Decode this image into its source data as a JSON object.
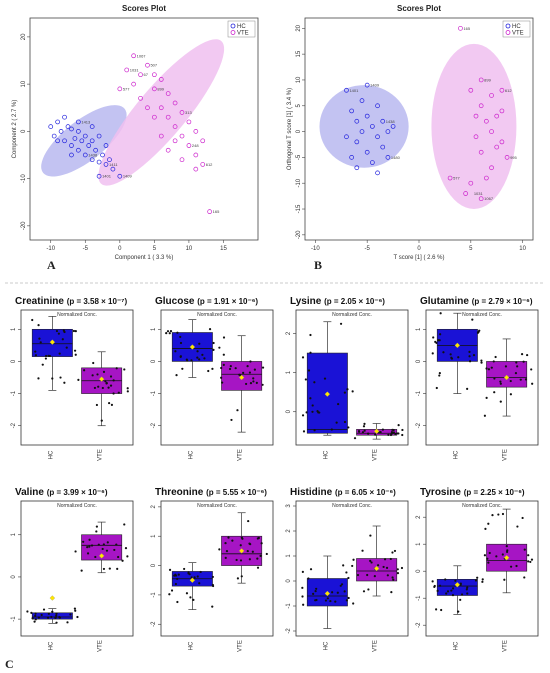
{
  "figure": {
    "panel_letters": [
      "A",
      "B",
      "C"
    ]
  },
  "chart_data": [
    {
      "type": "scatter",
      "panel": "A",
      "title": "Scores Plot",
      "xlabel": "Component 1 ( 3.3 %)",
      "ylabel": "Component 2 ( 2.7 %)",
      "xlim": [
        -13,
        20
      ],
      "ylim": [
        -23,
        24
      ],
      "xticks": [
        -10,
        -5,
        0,
        5,
        10,
        15
      ],
      "yticks": [
        -20,
        -10,
        0,
        10,
        20
      ],
      "legend": {
        "position": "top-right",
        "entries": [
          "HC",
          "VTE"
        ]
      },
      "colors": {
        "HC": "#2222dd",
        "VTE": "#cc22cc",
        "HC_fill": "#b8b8f0",
        "VTE_fill": "#f0c0f0"
      },
      "ellipses": [
        {
          "series": "HC",
          "cx": -5.2,
          "cy": -2.0,
          "rx": 7.5,
          "ry": 4.3,
          "angle": -38
        },
        {
          "series": "VTE",
          "cx": 6.0,
          "cy": 4.0,
          "rx": 13.5,
          "ry": 5.2,
          "angle": -50
        }
      ],
      "series": [
        {
          "name": "HC",
          "points": [
            [
              -10,
              1
            ],
            [
              -9.5,
              -1
            ],
            [
              -9,
              2
            ],
            [
              -8.5,
              0
            ],
            [
              -8,
              -2
            ],
            [
              -7.5,
              1
            ],
            [
              -7,
              -3
            ],
            [
              -7,
              0.5
            ],
            [
              -6.5,
              -1.5
            ],
            [
              -6,
              -4
            ],
            [
              -6,
              0
            ],
            [
              -5.5,
              -2
            ],
            [
              -5,
              -5
            ],
            [
              -5,
              -1
            ],
            [
              -4.5,
              -3
            ],
            [
              -4,
              -6
            ],
            [
              -4,
              -2
            ],
            [
              -3.5,
              -4
            ],
            [
              -3,
              -6.5
            ],
            [
              -3,
              -1
            ],
            [
              -2.5,
              -5
            ],
            [
              -2,
              -7
            ],
            [
              -2,
              -3
            ],
            [
              -1.5,
              -6
            ],
            [
              -1,
              -8
            ],
            [
              -8,
              3
            ],
            [
              -9,
              -2
            ],
            [
              -6,
              2
            ],
            [
              -4,
              1
            ],
            [
              -7,
              -5
            ],
            [
              -3,
              -9.5
            ],
            [
              0,
              -9.5
            ]
          ],
          "labels": [
            {
              "x": -6,
              "y": 2,
              "text": "1413"
            },
            {
              "x": -5,
              "y": -5,
              "text": "1438"
            },
            {
              "x": -3,
              "y": -9.5,
              "text": "1401"
            },
            {
              "x": 0,
              "y": -9.5,
              "text": "1409"
            },
            {
              "x": -2,
              "y": -7,
              "text": "1411"
            }
          ]
        },
        {
          "name": "VTE",
          "points": [
            [
              0,
              9
            ],
            [
              1,
              13
            ],
            [
              2,
              16
            ],
            [
              3,
              12
            ],
            [
              4,
              14
            ],
            [
              5,
              9
            ],
            [
              6,
              11
            ],
            [
              6,
              5
            ],
            [
              7,
              8
            ],
            [
              7,
              3
            ],
            [
              8,
              6
            ],
            [
              8,
              1
            ],
            [
              9,
              4
            ],
            [
              9,
              -1
            ],
            [
              10,
              2
            ],
            [
              10,
              -3
            ],
            [
              11,
              0
            ],
            [
              11,
              -5
            ],
            [
              12,
              -2
            ],
            [
              12,
              -7
            ],
            [
              5,
              3
            ],
            [
              6,
              -1
            ],
            [
              7,
              -4
            ],
            [
              8,
              -2
            ],
            [
              9,
              -6
            ],
            [
              4,
              5
            ],
            [
              3,
              7
            ],
            [
              2,
              10
            ],
            [
              5,
              12
            ],
            [
              11,
              -8
            ],
            [
              13,
              -17
            ]
          ],
          "labels": [
            {
              "x": 2,
              "y": 16,
              "text": "1067"
            },
            {
              "x": 1,
              "y": 13,
              "text": "1031"
            },
            {
              "x": 0,
              "y": 9,
              "text": "577"
            },
            {
              "x": 4,
              "y": 14,
              "text": "507"
            },
            {
              "x": 3,
              "y": 12,
              "text": "67"
            },
            {
              "x": 5,
              "y": 9,
              "text": "899"
            },
            {
              "x": 9,
              "y": 4,
              "text": "313"
            },
            {
              "x": 10,
              "y": -3,
              "text": "248"
            },
            {
              "x": 12,
              "y": -7,
              "text": "612"
            },
            {
              "x": 13,
              "y": -17,
              "text": "165"
            }
          ]
        }
      ]
    },
    {
      "type": "scatter",
      "panel": "B",
      "title": "Scores Plot",
      "xlabel": "T score [1] ( 2.6 %)",
      "ylabel": "Orthogonal T score [1] ( 3.4 %)",
      "xlim": [
        -11,
        11
      ],
      "ylim": [
        -21,
        22
      ],
      "xticks": [
        -10,
        -5,
        0,
        5,
        10
      ],
      "yticks": [
        -20,
        -15,
        -10,
        -5,
        0,
        5,
        10,
        15,
        20
      ],
      "legend": {
        "position": "top-right",
        "entries": [
          "HC",
          "VTE"
        ]
      },
      "colors": {
        "HC": "#2222dd",
        "VTE": "#cc22cc",
        "HC_fill": "#b8b8f0",
        "VTE_fill": "#f0c0f0"
      },
      "ellipses": [
        {
          "series": "HC",
          "cx": -5.3,
          "cy": 1.0,
          "rx": 4.3,
          "ry": 8.0,
          "angle": 0
        },
        {
          "series": "VTE",
          "cx": 5.3,
          "cy": 1.0,
          "rx": 4.1,
          "ry": 16.0,
          "angle": 0
        }
      ],
      "series": [
        {
          "name": "HC",
          "points": [
            [
              -7,
              8
            ],
            [
              -6.5,
              4
            ],
            [
              -6,
              2
            ],
            [
              -6,
              -2
            ],
            [
              -5.5,
              6
            ],
            [
              -5.5,
              0
            ],
            [
              -5,
              3
            ],
            [
              -5,
              -4
            ],
            [
              -4.5,
              1
            ],
            [
              -4.5,
              -6
            ],
            [
              -4,
              5
            ],
            [
              -4,
              -1
            ],
            [
              -3.5,
              2
            ],
            [
              -3.5,
              -3
            ],
            [
              -3,
              0
            ],
            [
              -3,
              -5
            ],
            [
              -6.5,
              -5
            ],
            [
              -7,
              -1
            ],
            [
              -5,
              9
            ],
            [
              -6,
              -7
            ],
            [
              -4,
              -8
            ],
            [
              -2.5,
              1
            ]
          ],
          "labels": [
            {
              "x": -7,
              "y": 8,
              "text": "1401"
            },
            {
              "x": -5,
              "y": 9,
              "text": "1409"
            },
            {
              "x": -3.5,
              "y": 2,
              "text": "1438"
            },
            {
              "x": -3,
              "y": -5,
              "text": "1480"
            }
          ]
        },
        {
          "name": "VTE",
          "points": [
            [
              4,
              20
            ],
            [
              5,
              8
            ],
            [
              6,
              10
            ],
            [
              6,
              5
            ],
            [
              6.5,
              2
            ],
            [
              7,
              7
            ],
            [
              7,
              0
            ],
            [
              7.5,
              3
            ],
            [
              8,
              -2
            ],
            [
              8,
              4
            ],
            [
              8.5,
              -5
            ],
            [
              6,
              -4
            ],
            [
              5.5,
              -1
            ],
            [
              7,
              -7
            ],
            [
              6.5,
              -9
            ],
            [
              5,
              -10
            ],
            [
              4.5,
              -12
            ],
            [
              6,
              -13
            ],
            [
              8,
              8
            ],
            [
              7.5,
              -3
            ],
            [
              5.5,
              3
            ],
            [
              3,
              -9
            ]
          ],
          "labels": [
            {
              "x": 4,
              "y": 20,
              "text": "165"
            },
            {
              "x": 8,
              "y": 8,
              "text": "612"
            },
            {
              "x": 6,
              "y": 10,
              "text": "899"
            },
            {
              "x": 8.5,
              "y": -5,
              "text": "995"
            },
            {
              "x": 3,
              "y": -9,
              "text": "577"
            },
            {
              "x": 5,
              "y": -12,
              "text": "1031"
            },
            {
              "x": 6,
              "y": -13,
              "text": "1067"
            }
          ]
        }
      ]
    },
    {
      "type": "box",
      "panel": "C",
      "subtitle": "Normalized Conc.",
      "categories": [
        "HC",
        "VTE"
      ],
      "colors": {
        "HC": "#1a12d6",
        "VTE": "#a615c4",
        "mean": "#ffe600"
      },
      "plots": [
        {
          "name": "Creatinine",
          "p": "p = 3.58 × 10⁻⁷",
          "ylim": [
            -2.6,
            1.6
          ],
          "yticks": [
            1,
            0,
            -1,
            -2
          ],
          "boxes": [
            {
              "q1": 0.15,
              "median": 0.55,
              "q3": 1.0,
              "lo": -0.9,
              "hi": 1.4,
              "mean": 0.6
            },
            {
              "q1": -1.0,
              "median": -0.6,
              "q3": -0.2,
              "lo": -2.0,
              "hi": 0.3,
              "mean": -0.55
            }
          ]
        },
        {
          "name": "Glucose",
          "p": "p = 1.91 × 10⁻⁶",
          "ylim": [
            -2.6,
            1.6
          ],
          "yticks": [
            1,
            0,
            -1,
            -2
          ],
          "boxes": [
            {
              "q1": 0.0,
              "median": 0.4,
              "q3": 0.9,
              "lo": -0.5,
              "hi": 1.3,
              "mean": 0.45
            },
            {
              "q1": -0.9,
              "median": -0.4,
              "q3": 0.0,
              "lo": -2.2,
              "hi": 0.8,
              "mean": -0.5
            }
          ]
        },
        {
          "name": "Lysine",
          "p": "p = 2.05 × 10⁻⁶",
          "ylim": [
            -0.85,
            2.6
          ],
          "yticks": [
            2,
            1,
            0
          ],
          "boxes": [
            {
              "q1": -0.55,
              "median": -0.45,
              "q3": 1.5,
              "lo": -0.6,
              "hi": 2.3,
              "mean": 0.45
            },
            {
              "q1": -0.6,
              "median": -0.55,
              "q3": -0.45,
              "lo": -0.7,
              "hi": -0.3,
              "mean": -0.5
            }
          ]
        },
        {
          "name": "Glutamine",
          "p": "p = 2.79 × 10⁻⁶",
          "ylim": [
            -2.6,
            1.6
          ],
          "yticks": [
            1,
            0,
            -1,
            -2
          ],
          "boxes": [
            {
              "q1": 0.0,
              "median": 0.5,
              "q3": 1.0,
              "lo": -1.0,
              "hi": 1.5,
              "mean": 0.5
            },
            {
              "q1": -0.8,
              "median": -0.5,
              "q3": 0.0,
              "lo": -1.7,
              "hi": 0.7,
              "mean": -0.5
            }
          ]
        },
        {
          "name": "Valine",
          "p": "p = 3.99 × 10⁻⁶",
          "ylim": [
            -1.4,
            1.8
          ],
          "yticks": [
            1,
            0,
            -1
          ],
          "boxes": [
            {
              "q1": -1.0,
              "median": -0.95,
              "q3": -0.85,
              "lo": -1.1,
              "hi": -0.75,
              "mean": -0.5
            },
            {
              "q1": 0.4,
              "median": 0.75,
              "q3": 1.0,
              "lo": 0.1,
              "hi": 1.3,
              "mean": 0.5
            }
          ]
        },
        {
          "name": "Threonine",
          "p": "p = 5.55 × 10⁻⁶",
          "ylim": [
            -2.4,
            2.2
          ],
          "yticks": [
            2,
            1,
            0,
            -1,
            -2
          ],
          "boxes": [
            {
              "q1": -0.7,
              "median": -0.45,
              "q3": -0.2,
              "lo": -1.5,
              "hi": 0.1,
              "mean": -0.5
            },
            {
              "q1": 0.0,
              "median": 0.4,
              "q3": 1.0,
              "lo": -0.6,
              "hi": 1.8,
              "mean": 0.5
            }
          ]
        },
        {
          "name": "Histidine",
          "p": "p = 6.05 × 10⁻⁶",
          "ylim": [
            -2.2,
            3.2
          ],
          "yticks": [
            3,
            2,
            1,
            0,
            -1,
            -2
          ],
          "boxes": [
            {
              "q1": -1.0,
              "median": -0.6,
              "q3": 0.1,
              "lo": -1.9,
              "hi": 1.0,
              "mean": -0.5
            },
            {
              "q1": 0.0,
              "median": 0.4,
              "q3": 0.9,
              "lo": -0.6,
              "hi": 2.2,
              "mean": 0.5
            }
          ]
        },
        {
          "name": "Tyrosine",
          "p": "p = 2.25 × 10⁻⁶",
          "ylim": [
            -2.4,
            2.6
          ],
          "yticks": [
            2,
            1,
            0,
            -1,
            -2
          ],
          "boxes": [
            {
              "q1": -0.9,
              "median": -0.55,
              "q3": -0.3,
              "lo": -1.6,
              "hi": 0.2,
              "mean": -0.5
            },
            {
              "q1": 0.0,
              "median": 0.4,
              "q3": 1.0,
              "lo": -0.8,
              "hi": 2.3,
              "mean": 0.5
            }
          ]
        }
      ]
    }
  ]
}
